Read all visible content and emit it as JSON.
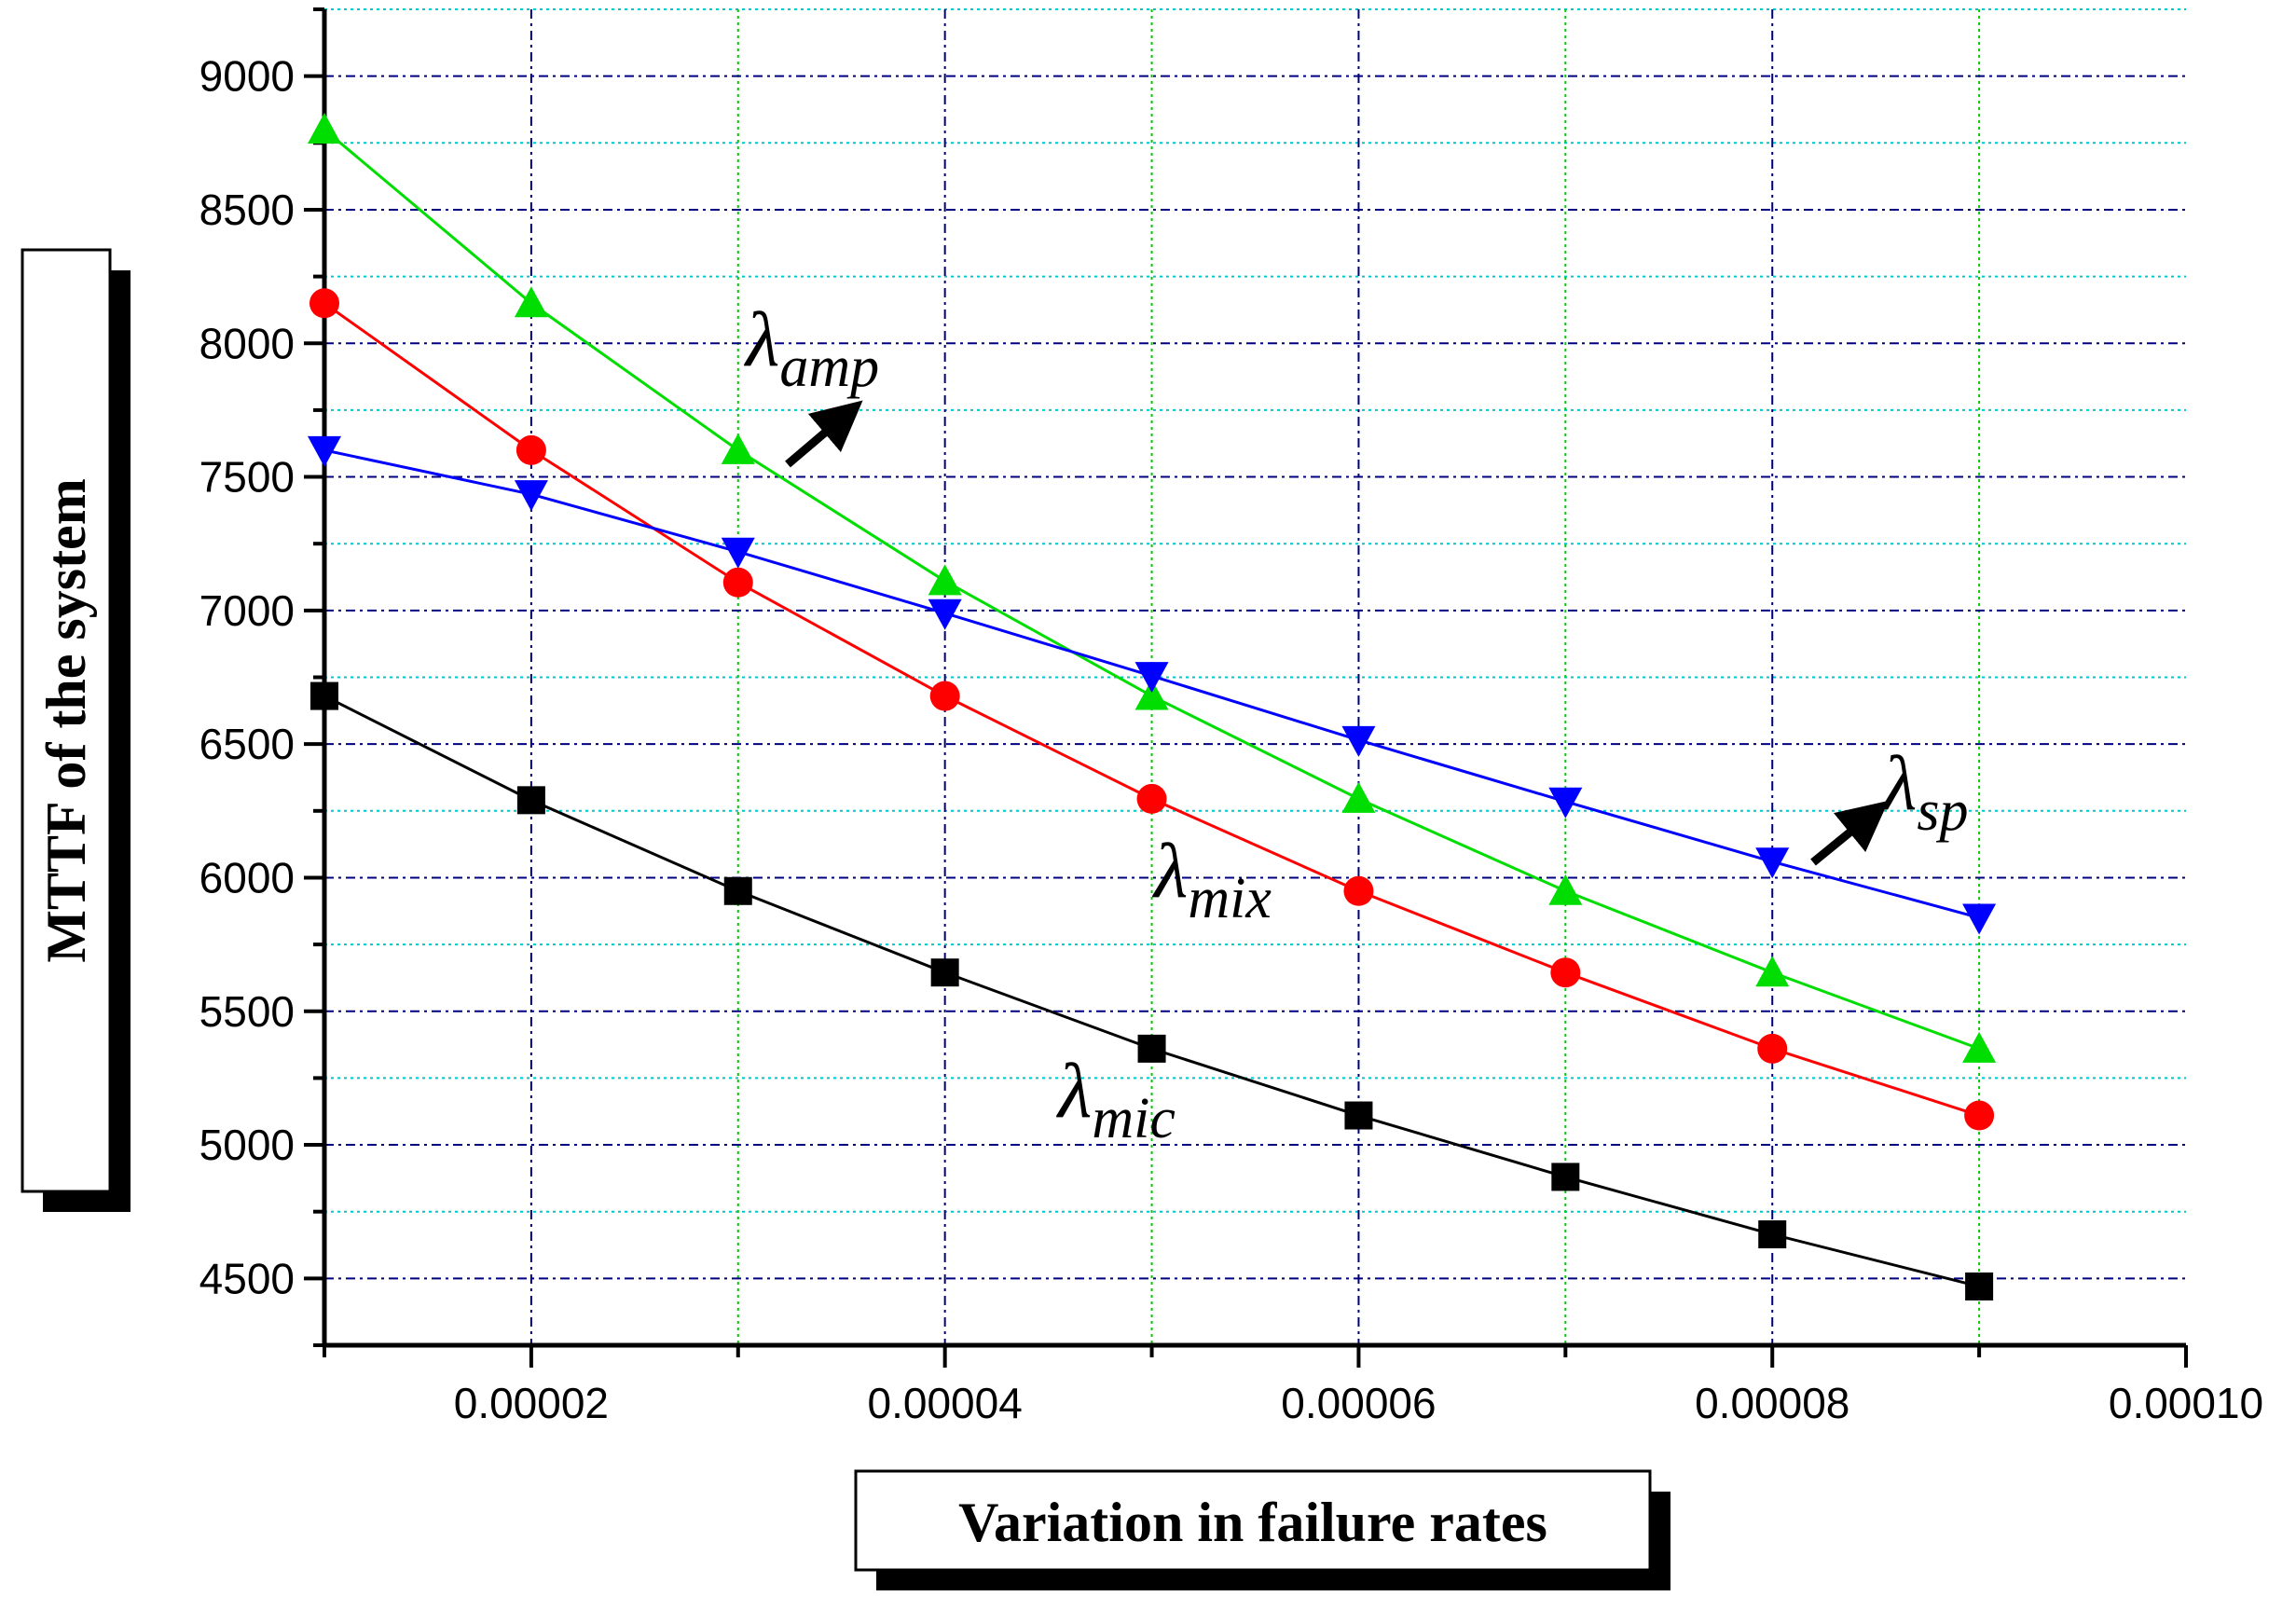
{
  "chart_data": {
    "type": "line",
    "title": "",
    "xlabel": "Variation in failure rates",
    "ylabel": "MTTF of the system",
    "xlim": [
      1e-05,
      0.0001
    ],
    "ylim": [
      4250,
      9250
    ],
    "x": [
      1e-05,
      2e-05,
      3e-05,
      4e-05,
      5e-05,
      6e-05,
      7e-05,
      8e-05,
      9e-05
    ],
    "x_ticks": [
      2e-05,
      4e-05,
      6e-05,
      8e-05,
      0.0001
    ],
    "x_tick_labels": [
      "0.00002",
      "0.00004",
      "0.00006",
      "0.00008",
      "0.00010"
    ],
    "y_ticks": [
      4500,
      5000,
      5500,
      6000,
      6500,
      7000,
      7500,
      8000,
      8500,
      9000
    ],
    "y_tick_labels": [
      "4500",
      "5000",
      "5500",
      "6000",
      "6500",
      "7000",
      "7500",
      "8000",
      "8500",
      "9000"
    ],
    "grid": true,
    "legend": "none",
    "series": [
      {
        "name": "λmic",
        "symbol": "λ",
        "subscript": "mic",
        "color": "#000000",
        "marker": "square",
        "values": [
          6680,
          6290,
          5950,
          5645,
          5360,
          5110,
          4880,
          4665,
          4470
        ]
      },
      {
        "name": "λmix",
        "symbol": "λ",
        "subscript": "mix",
        "color": "#ff0000",
        "marker": "circle",
        "values": [
          8150,
          7600,
          7105,
          6680,
          6295,
          5950,
          5645,
          5360,
          5110
        ]
      },
      {
        "name": "λamp",
        "symbol": "λ",
        "subscript": "amp",
        "color": "#00dd00",
        "marker": "triangle-up",
        "values": [
          8800,
          8150,
          7600,
          7110,
          6680,
          6295,
          5950,
          5645,
          5360
        ]
      },
      {
        "name": "λsp",
        "symbol": "λ",
        "subscript": "sp",
        "color": "#0000ff",
        "marker": "triangle-down",
        "values": [
          7600,
          7435,
          7220,
          6990,
          6755,
          6515,
          6285,
          6060,
          5850
        ]
      }
    ],
    "annotations": [
      {
        "symbol": "λ",
        "subscript": "amp",
        "series": "λamp",
        "arrow": true
      },
      {
        "symbol": "λ",
        "subscript": "sp",
        "series": "λsp",
        "arrow": true
      },
      {
        "symbol": "λ",
        "subscript": "mix",
        "series": "λmix",
        "arrow": false
      },
      {
        "symbol": "λ",
        "subscript": "mic",
        "series": "λmic",
        "arrow": false
      }
    ],
    "colors": {
      "major_grid": "#000080",
      "minor_grid_y": "#00c8c8",
      "minor_grid_x": "#00cc00"
    }
  }
}
